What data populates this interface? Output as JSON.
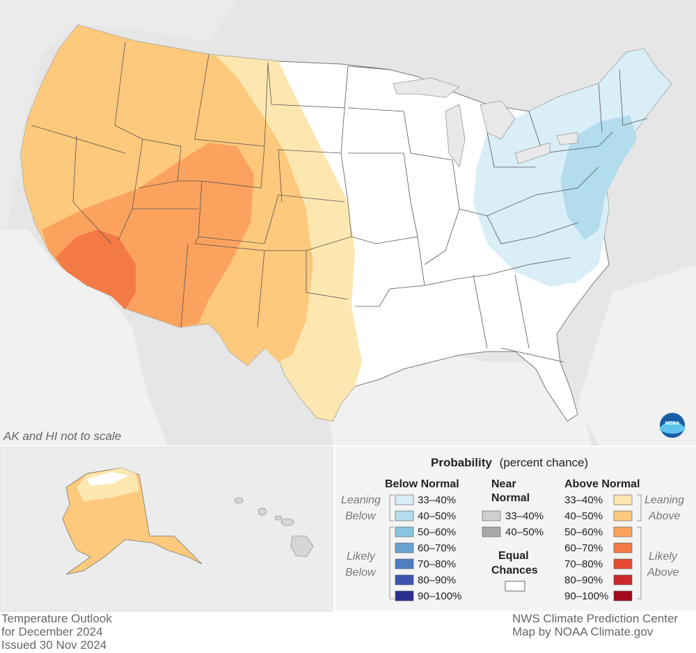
{
  "map": {
    "scale_note": "AK and HI not to scale"
  },
  "legend": {
    "title_bold": "Probability",
    "title_rest": "(percent chance)",
    "below_heading": "Below Normal",
    "near_heading_1": "Near",
    "near_heading_2": "Normal",
    "above_heading": "Above Normal",
    "equal_heading_1": "Equal",
    "equal_heading_2": "Chances",
    "side_left_leaning_1": "Leaning",
    "side_left_leaning_2": "Below",
    "side_left_likely_1": "Likely",
    "side_left_likely_2": "Below",
    "side_right_leaning_1": "Leaning",
    "side_right_leaning_2": "Above",
    "side_right_likely_1": "Likely",
    "side_right_likely_2": "Above",
    "below": [
      {
        "label": "33–40%",
        "color": "#d9eef7"
      },
      {
        "label": "40–50%",
        "color": "#b3dced"
      },
      {
        "label": "50–60%",
        "color": "#8bc4df"
      },
      {
        "label": "60–70%",
        "color": "#6aa2d0"
      },
      {
        "label": "70–80%",
        "color": "#4f7fc2"
      },
      {
        "label": "80–90%",
        "color": "#3b54ac"
      },
      {
        "label": "90–100%",
        "color": "#2b2f8e"
      }
    ],
    "near": [
      {
        "label": "33–40%",
        "color": "#cfcfcf"
      },
      {
        "label": "40–50%",
        "color": "#a9a9a9"
      }
    ],
    "above": [
      {
        "label": "33–40%",
        "color": "#fde7b0"
      },
      {
        "label": "40–50%",
        "color": "#fdc97c"
      },
      {
        "label": "50–60%",
        "color": "#fba35e"
      },
      {
        "label": "60–70%",
        "color": "#f47a45"
      },
      {
        "label": "70–80%",
        "color": "#e64c33"
      },
      {
        "label": "80–90%",
        "color": "#cc2a2a"
      },
      {
        "label": "90–100%",
        "color": "#a5081f"
      }
    ]
  },
  "footer": {
    "left_line1": "Temperature Outlook",
    "left_line2": "for December 2024",
    "left_line3": "Issued 30 Nov 2024",
    "right_line1": "NWS Climate Prediction Center",
    "right_line2": "Map by NOAA Climate.gov"
  },
  "logo": {
    "text": "NOAA"
  },
  "colors": {
    "land_background": "#e4e4e4",
    "water": "#f2f2f2",
    "equal_chances": "#ffffff",
    "state_lines": "#444444"
  }
}
